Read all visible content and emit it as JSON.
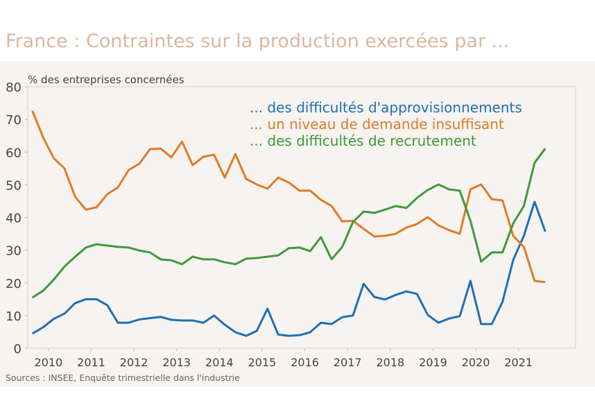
{
  "chart_data": {
    "type": "line",
    "title": "France : Contraintes sur la production exercées par ...",
    "y_label": "% des entreprises concernées",
    "source": "Sources : INSEE, Enquête trimestrielle dans l'industrie",
    "x": [
      2010,
      2010.25,
      2010.5,
      2010.75,
      2011,
      2011.25,
      2011.5,
      2011.75,
      2012,
      2012.25,
      2012.5,
      2012.75,
      2013,
      2013.25,
      2013.5,
      2013.75,
      2014,
      2014.25,
      2014.5,
      2014.75,
      2015,
      2015.25,
      2015.5,
      2015.75,
      2016,
      2016.25,
      2016.5,
      2016.75,
      2017,
      2017.25,
      2017.5,
      2017.75,
      2018,
      2018.25,
      2018.5,
      2018.75,
      2019,
      2019.25,
      2019.5,
      2019.75,
      2020,
      2020.25,
      2020.5,
      2020.75,
      2021,
      2021.25,
      2021.5,
      2021.75,
      2022
    ],
    "xlim": [
      2009.89,
      2022.71
    ],
    "xticks": [
      {
        "value": 2010.375,
        "label": "2010"
      },
      {
        "value": 2011.375,
        "label": "2011"
      },
      {
        "value": 2012.375,
        "label": "2012"
      },
      {
        "value": 2013.375,
        "label": "2013"
      },
      {
        "value": 2014.375,
        "label": "2014"
      },
      {
        "value": 2015.375,
        "label": "2015"
      },
      {
        "value": 2016.375,
        "label": "2016"
      },
      {
        "value": 2017.375,
        "label": "2017"
      },
      {
        "value": 2018.375,
        "label": "2018"
      },
      {
        "value": 2019.375,
        "label": "2019"
      },
      {
        "value": 2020.375,
        "label": "2020"
      },
      {
        "value": 2021.375,
        "label": "2021"
      }
    ],
    "ylim": [
      0,
      80
    ],
    "yticks": [
      0,
      10,
      20,
      30,
      40,
      50,
      60,
      70,
      80
    ],
    "grid": false,
    "legend": "top-right",
    "series": [
      {
        "name": "... des difficultés d'approvisionnements",
        "color": "#1f6fb4",
        "values": [
          4.5,
          6.4,
          9,
          10.6,
          13.8,
          15,
          15,
          13.2,
          7.8,
          7.8,
          8.8,
          9.2,
          9.6,
          8.7,
          8.5,
          8.5,
          7.8,
          10,
          7.2,
          4.9,
          3.8,
          5.3,
          12.1,
          4.2,
          3.8,
          4,
          4.9,
          7.8,
          7.4,
          9.5,
          10,
          19.7,
          15.7,
          14.9,
          16.3,
          17.4,
          16.6,
          10.2,
          7.8,
          9.1,
          9.8,
          20.6,
          7.4,
          7.4,
          14.2,
          27,
          34.4,
          44.8,
          35.7
        ]
      },
      {
        "name": "... un niveau de demande insuffisant",
        "color": "#e07b28",
        "values": [
          72.6,
          64.5,
          58.1,
          55,
          46.3,
          42.4,
          43.1,
          47.1,
          49.2,
          54.5,
          56.4,
          60.9,
          61.1,
          58.4,
          63.2,
          56,
          58.6,
          59.2,
          52.2,
          59.4,
          51.8,
          50.1,
          48.8,
          52.2,
          50.7,
          48.2,
          48.2,
          45.4,
          43.5,
          38.8,
          39,
          36.5,
          34.2,
          34.4,
          35,
          36.9,
          38,
          40.1,
          37.6,
          36.1,
          35,
          48.6,
          50.1,
          45.6,
          45.2,
          34.4,
          31,
          20.6,
          20.2
        ]
      },
      {
        "name": "... des difficultés de recrutement",
        "color": "#3d9a3a",
        "values": [
          15.5,
          17.6,
          21,
          25,
          28,
          30.8,
          31.8,
          31.4,
          31,
          30.8,
          29.9,
          29.3,
          27.2,
          26.9,
          25.7,
          28,
          27.2,
          27.2,
          26.3,
          25.7,
          27.4,
          27.6,
          28,
          28.4,
          30.6,
          30.8,
          29.7,
          34,
          27.2,
          31,
          38.6,
          41.8,
          41.4,
          42.4,
          43.5,
          42.9,
          46,
          48.4,
          50.1,
          48.6,
          48.2,
          39,
          26.5,
          29.3,
          29.3,
          38.2,
          43.5,
          56.7,
          61.1
        ]
      }
    ]
  }
}
